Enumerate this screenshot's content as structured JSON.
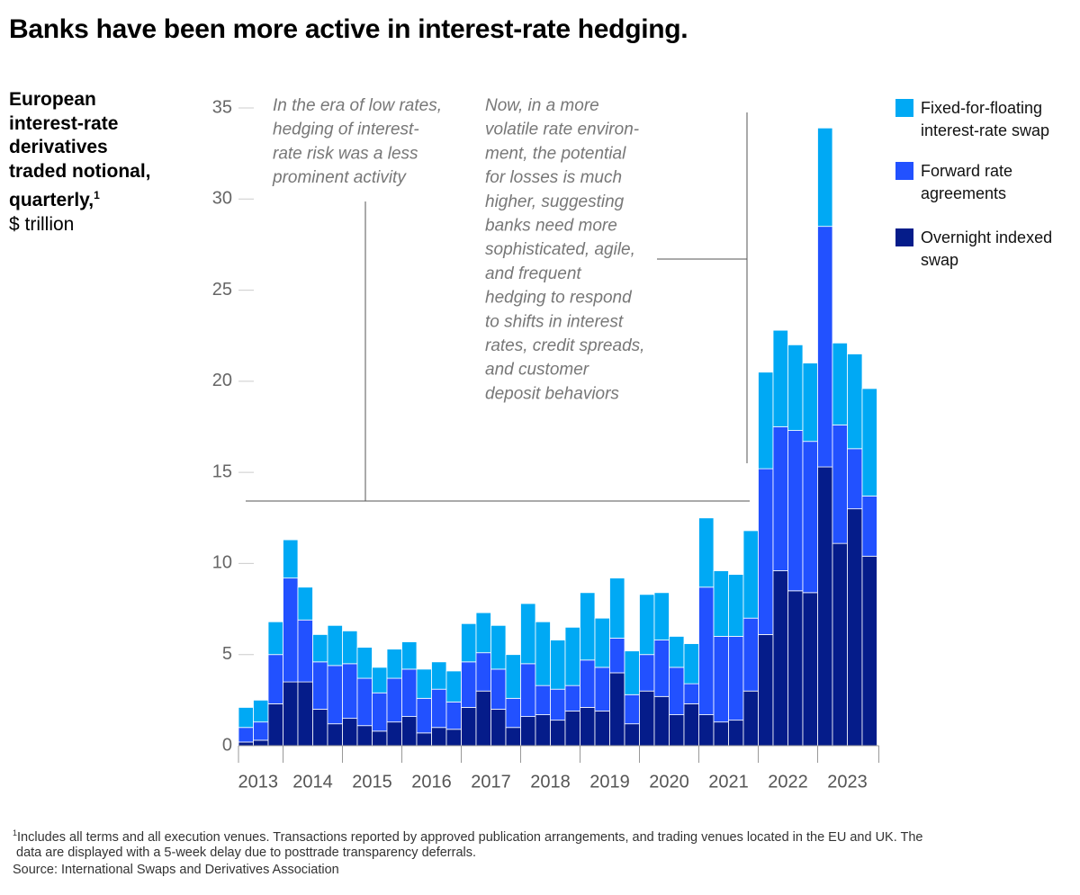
{
  "chart_data": {
    "type": "stacked-bar",
    "title": "Banks have been more active in interest-rate hedging.",
    "subtitle_lines": [
      "European",
      "interest-rate",
      "derivatives",
      "traded notional,",
      "quarterly,"
    ],
    "subtitle_note_marker": "1",
    "unit": "$ trillion",
    "categories": [
      "2013",
      null,
      null,
      "2014",
      null,
      null,
      null,
      "2015",
      null,
      null,
      null,
      "2016",
      null,
      null,
      null,
      "2017",
      null,
      null,
      null,
      "2018",
      null,
      null,
      null,
      "2019",
      null,
      null,
      null,
      "2020",
      null,
      null,
      null,
      "2021",
      null,
      null,
      null,
      "2022",
      null,
      null,
      null,
      "2023",
      null,
      null,
      null
    ],
    "series": [
      {
        "name": "Overnight indexed swap",
        "color": "#051c8a",
        "values": [
          0.2,
          0.3,
          2.3,
          3.5,
          3.5,
          2.0,
          1.2,
          1.5,
          1.1,
          0.8,
          1.3,
          1.6,
          0.7,
          1.0,
          0.9,
          2.1,
          3.0,
          2.0,
          1.0,
          1.6,
          1.7,
          1.4,
          1.9,
          2.1,
          1.9,
          4.0,
          1.2,
          3.0,
          2.7,
          1.7,
          2.3,
          1.7,
          1.3,
          1.4,
          3.0,
          6.1,
          9.6,
          8.5,
          8.4,
          15.3,
          11.1,
          13.0,
          10.4
        ]
      },
      {
        "name": "Forward rate agreements",
        "color": "#2251ff",
        "values": [
          0.8,
          1.0,
          2.7,
          5.7,
          3.4,
          2.6,
          3.2,
          3.0,
          2.6,
          2.1,
          2.4,
          2.6,
          1.9,
          2.1,
          1.5,
          2.5,
          2.1,
          2.2,
          1.6,
          2.9,
          1.6,
          1.7,
          1.4,
          2.6,
          2.4,
          1.9,
          1.6,
          2.0,
          3.1,
          2.6,
          1.1,
          7.0,
          4.7,
          4.6,
          4.0,
          9.1,
          7.9,
          8.8,
          8.3,
          13.2,
          6.5,
          3.3,
          3.3
        ]
      },
      {
        "name": "Fixed-for-floating interest-rate swap",
        "color": "#00a9f4",
        "values": [
          1.1,
          1.2,
          1.8,
          2.1,
          1.8,
          1.5,
          2.2,
          1.8,
          1.7,
          1.4,
          1.6,
          1.5,
          1.6,
          1.5,
          1.7,
          2.1,
          2.2,
          2.4,
          2.4,
          3.3,
          3.5,
          2.7,
          3.2,
          3.7,
          2.7,
          3.3,
          2.4,
          3.3,
          2.6,
          1.7,
          2.2,
          3.8,
          3.6,
          3.4,
          4.8,
          5.3,
          5.3,
          4.7,
          4.3,
          5.4,
          4.5,
          5.2,
          5.9
        ]
      }
    ],
    "legend_order": [
      2,
      1,
      0
    ],
    "ylim": [
      0,
      35
    ],
    "yticks": [
      0,
      5,
      10,
      15,
      20,
      25,
      30,
      35
    ],
    "grid": false,
    "annotations": [
      {
        "lines": [
          "In the era of low rates,",
          "hedging of interest-",
          "rate risk was a less",
          "prominent activity"
        ]
      },
      {
        "lines": [
          "Now, in a more",
          "volatile rate environ-",
          "ment, the potential",
          "for losses is much",
          "higher, suggesting",
          "banks need more",
          "sophisticated, agile,",
          "and frequent",
          "hedging to respond",
          "to shifts in interest",
          "rates, credit spreads,",
          "and customer",
          "deposit behaviors"
        ]
      }
    ],
    "footnote": {
      "marker": "1",
      "lines": [
        "Includes all terms and all execution venues. Transactions reported by approved publication arrangements, and trading venues located in the EU and UK. The",
        "data are displayed with a 5-week delay due to posttrade transparency deferrals."
      ]
    },
    "source": "Source: International Swaps and Derivatives Association"
  }
}
